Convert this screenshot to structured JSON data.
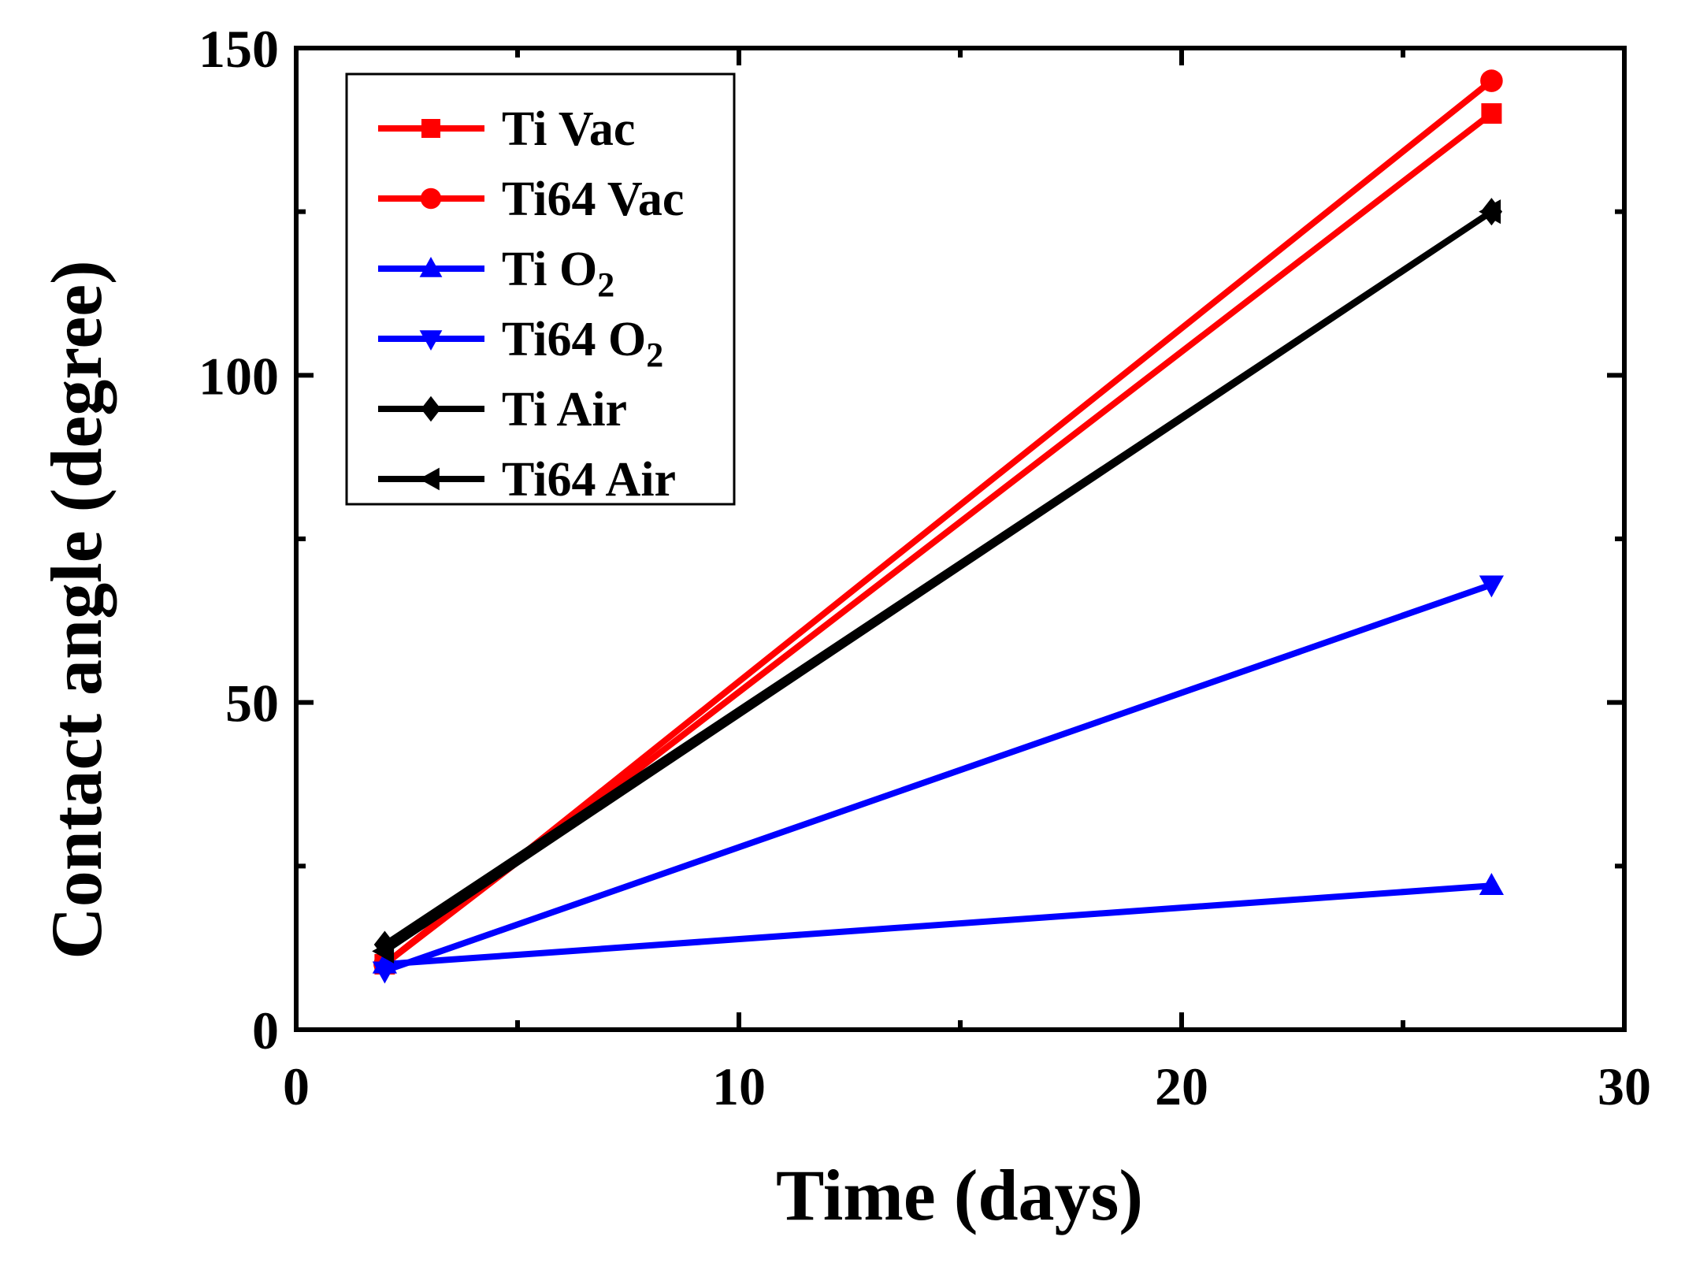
{
  "chart_data": {
    "type": "line",
    "title": "",
    "xlabel": "Time (days)",
    "ylabel": "Contact angle (degree)",
    "xlim": [
      0,
      30
    ],
    "ylim": [
      0,
      150
    ],
    "xticks": [
      0,
      10,
      20,
      30
    ],
    "yticks": [
      0,
      50,
      100,
      150
    ],
    "x_tick_labels": [
      "0",
      "10",
      "20",
      "30"
    ],
    "y_tick_labels": [
      "0",
      "50",
      "100",
      "150"
    ],
    "grid": false,
    "legend_position": "top-left",
    "series": [
      {
        "name": "Ti Vac",
        "label_main": "Ti Vac",
        "label_sub": "",
        "color": "#ff0000",
        "marker": "square",
        "x": [
          2,
          27
        ],
        "y": [
          10,
          140
        ]
      },
      {
        "name": "Ti64 Vac",
        "label_main": "Ti64 Vac",
        "label_sub": "",
        "color": "#ff0000",
        "marker": "circle",
        "x": [
          2,
          27
        ],
        "y": [
          10,
          145
        ]
      },
      {
        "name": "Ti O2",
        "label_main": "Ti O",
        "label_sub": "2",
        "color": "#0000ff",
        "marker": "triangle-up",
        "x": [
          2,
          27
        ],
        "y": [
          10,
          22
        ]
      },
      {
        "name": "Ti64 O2",
        "label_main": "Ti64 O",
        "label_sub": "2",
        "color": "#0000ff",
        "marker": "triangle-down",
        "x": [
          2,
          27
        ],
        "y": [
          9,
          68
        ]
      },
      {
        "name": "Ti Air",
        "label_main": "Ti Air",
        "label_sub": "",
        "color": "#000000",
        "marker": "diamond",
        "x": [
          2,
          27
        ],
        "y": [
          13,
          125
        ]
      },
      {
        "name": "Ti64 Air",
        "label_main": "Ti64 Air",
        "label_sub": "",
        "color": "#000000",
        "marker": "triangle-left",
        "x": [
          2,
          27
        ],
        "y": [
          12,
          125
        ]
      }
    ]
  }
}
